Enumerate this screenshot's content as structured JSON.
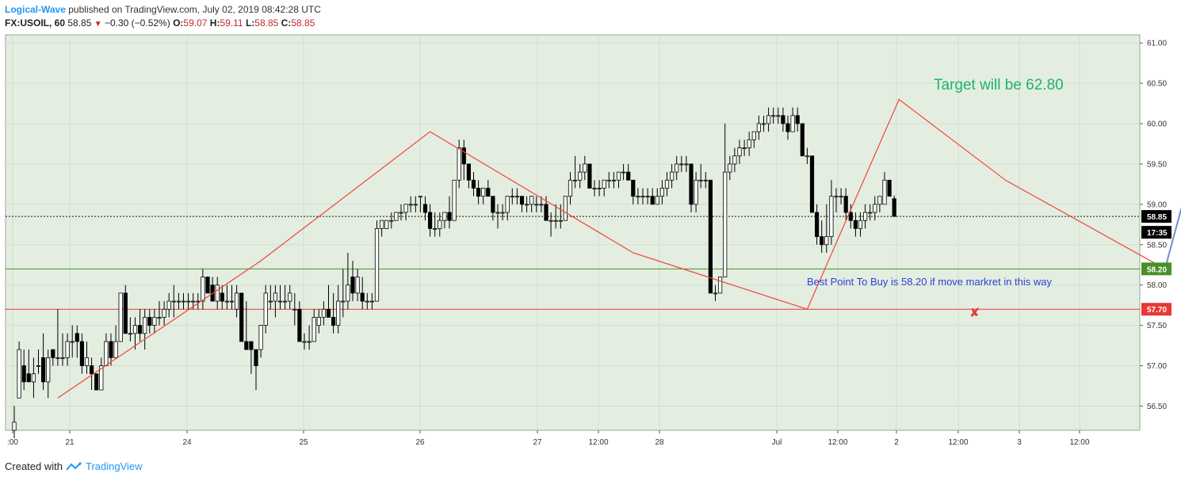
{
  "header": {
    "author": "Logical-Wave",
    "published": "published on TradingView.com, July 02, 2019 08:42:28 UTC",
    "symbol": "FX:USOIL, 60",
    "last": "58.85",
    "change": "−0.30 (−0.52%)",
    "o_label": "O:",
    "o": "59.07",
    "h_label": "H:",
    "h": "59.11",
    "l_label": "L:",
    "l": "58.85",
    "c_label": "C:",
    "c": "58.85"
  },
  "footer": {
    "created_with": "Created with",
    "brand": "TradingView"
  },
  "colors": {
    "plot_bg": "#e3eee1",
    "up": "#ffffff",
    "down": "#000000",
    "pattern_line": "#f44336",
    "target_arrow": "#6d8fcf",
    "target_text": "#21b36b",
    "buy_text": "#2f3fd6",
    "support": "#4a8f2a",
    "stop": "#e53935",
    "grid": "#d2ddd0"
  },
  "chart_data": {
    "type": "candlestick",
    "symbol": "FX:USOIL",
    "interval": "60",
    "ylim": [
      56.2,
      61.1
    ],
    "yticks": [
      "61.00",
      "60.50",
      "60.00",
      "59.50",
      "59.00",
      "58.50",
      "58.00",
      "57.50",
      "57.00",
      "56.50"
    ],
    "xticks": [
      ":00",
      "21",
      "24",
      "25",
      "26",
      "27",
      "12:00",
      "28",
      "Jul",
      "12:00",
      "2",
      "12:00",
      "3",
      "12:00"
    ],
    "price_labels": [
      {
        "text": "58.85",
        "value": 58.85,
        "style": "last"
      },
      {
        "text": "17:35",
        "value": 58.72,
        "style": "timer"
      },
      {
        "text": "58.20",
        "value": 58.2,
        "style": "support"
      },
      {
        "text": "57.70",
        "value": 57.7,
        "style": "stop"
      }
    ],
    "horizontal_lines": [
      {
        "value": 58.85,
        "style": "dotted"
      },
      {
        "value": 58.2,
        "style": "support"
      },
      {
        "value": 57.7,
        "style": "stop"
      }
    ],
    "candles": [
      {
        "o": 56.2,
        "h": 56.5,
        "l": 56.1,
        "c": 56.3
      },
      {
        "o": 56.6,
        "h": 57.3,
        "l": 56.6,
        "c": 57.2
      },
      {
        "o": 57.0,
        "h": 57.2,
        "l": 56.7,
        "c": 56.8
      },
      {
        "o": 56.9,
        "h": 57.2,
        "l": 56.8,
        "c": 56.8
      },
      {
        "o": 56.8,
        "h": 57.1,
        "l": 56.6,
        "c": 56.9
      },
      {
        "o": 57.0,
        "h": 57.2,
        "l": 56.9,
        "c": 57.0
      },
      {
        "o": 57.1,
        "h": 57.4,
        "l": 56.7,
        "c": 56.8
      },
      {
        "o": 56.8,
        "h": 57.2,
        "l": 56.6,
        "c": 57.1
      },
      {
        "o": 57.2,
        "h": 57.2,
        "l": 57.0,
        "c": 57.1
      },
      {
        "o": 57.1,
        "h": 57.7,
        "l": 57.0,
        "c": 57.1
      },
      {
        "o": 57.1,
        "h": 57.4,
        "l": 57.0,
        "c": 57.1
      },
      {
        "o": 57.1,
        "h": 57.4,
        "l": 57.0,
        "c": 57.3
      },
      {
        "o": 57.3,
        "h": 57.5,
        "l": 57.1,
        "c": 57.3
      },
      {
        "o": 57.4,
        "h": 57.5,
        "l": 57.1,
        "c": 57.3
      },
      {
        "o": 57.3,
        "h": 57.4,
        "l": 56.9,
        "c": 57.0
      },
      {
        "o": 57.0,
        "h": 57.3,
        "l": 56.9,
        "c": 57.1
      },
      {
        "o": 57.0,
        "h": 57.1,
        "l": 56.7,
        "c": 56.9
      },
      {
        "o": 56.9,
        "h": 56.9,
        "l": 56.7,
        "c": 56.7
      },
      {
        "o": 56.7,
        "h": 57.1,
        "l": 56.7,
        "c": 57.0
      },
      {
        "o": 57.0,
        "h": 57.4,
        "l": 57.0,
        "c": 57.3
      },
      {
        "o": 57.3,
        "h": 57.4,
        "l": 57.0,
        "c": 57.1
      },
      {
        "o": 57.1,
        "h": 57.5,
        "l": 57.1,
        "c": 57.3
      },
      {
        "o": 57.3,
        "h": 57.9,
        "l": 57.3,
        "c": 57.9
      },
      {
        "o": 57.9,
        "h": 58.0,
        "l": 57.4,
        "c": 57.4
      },
      {
        "o": 57.4,
        "h": 57.6,
        "l": 57.3,
        "c": 57.4
      },
      {
        "o": 57.4,
        "h": 57.6,
        "l": 57.2,
        "c": 57.5
      },
      {
        "o": 57.5,
        "h": 57.7,
        "l": 57.3,
        "c": 57.4
      },
      {
        "o": 57.4,
        "h": 57.7,
        "l": 57.2,
        "c": 57.6
      },
      {
        "o": 57.6,
        "h": 57.7,
        "l": 57.4,
        "c": 57.5
      },
      {
        "o": 57.5,
        "h": 57.7,
        "l": 57.4,
        "c": 57.6
      },
      {
        "o": 57.6,
        "h": 57.8,
        "l": 57.5,
        "c": 57.6
      },
      {
        "o": 57.6,
        "h": 57.8,
        "l": 57.5,
        "c": 57.7
      },
      {
        "o": 57.7,
        "h": 57.9,
        "l": 57.6,
        "c": 57.8
      },
      {
        "o": 57.8,
        "h": 58.0,
        "l": 57.6,
        "c": 57.8
      },
      {
        "o": 57.8,
        "h": 57.9,
        "l": 57.7,
        "c": 57.8
      },
      {
        "o": 57.8,
        "h": 57.9,
        "l": 57.7,
        "c": 57.8
      },
      {
        "o": 57.8,
        "h": 57.9,
        "l": 57.7,
        "c": 57.8
      },
      {
        "o": 57.8,
        "h": 57.9,
        "l": 57.7,
        "c": 57.8
      },
      {
        "o": 57.8,
        "h": 57.9,
        "l": 57.7,
        "c": 57.8
      },
      {
        "o": 57.8,
        "h": 58.2,
        "l": 57.7,
        "c": 58.1
      },
      {
        "o": 58.1,
        "h": 58.1,
        "l": 57.9,
        "c": 57.9
      },
      {
        "o": 58.0,
        "h": 58.1,
        "l": 57.8,
        "c": 57.8
      },
      {
        "o": 57.8,
        "h": 58.1,
        "l": 57.7,
        "c": 58.0
      },
      {
        "o": 57.9,
        "h": 58.0,
        "l": 57.7,
        "c": 57.8
      },
      {
        "o": 57.8,
        "h": 58.0,
        "l": 57.7,
        "c": 57.8
      },
      {
        "o": 57.8,
        "h": 58.0,
        "l": 57.7,
        "c": 57.8
      },
      {
        "o": 57.7,
        "h": 58.0,
        "l": 57.6,
        "c": 57.9
      },
      {
        "o": 57.9,
        "h": 57.9,
        "l": 57.3,
        "c": 57.3
      },
      {
        "o": 57.3,
        "h": 57.8,
        "l": 57.2,
        "c": 57.2
      },
      {
        "o": 57.3,
        "h": 57.3,
        "l": 56.9,
        "c": 57.2
      },
      {
        "o": 57.2,
        "h": 57.2,
        "l": 56.7,
        "c": 57.0
      },
      {
        "o": 57.2,
        "h": 57.5,
        "l": 57.1,
        "c": 57.5
      },
      {
        "o": 57.5,
        "h": 58.0,
        "l": 57.4,
        "c": 57.9
      },
      {
        "o": 57.8,
        "h": 58.0,
        "l": 57.7,
        "c": 57.8
      },
      {
        "o": 57.8,
        "h": 58.0,
        "l": 57.6,
        "c": 57.9
      },
      {
        "o": 57.8,
        "h": 58.0,
        "l": 57.7,
        "c": 57.8
      },
      {
        "o": 57.8,
        "h": 58.0,
        "l": 57.7,
        "c": 57.8
      },
      {
        "o": 57.8,
        "h": 58.0,
        "l": 57.7,
        "c": 57.9
      },
      {
        "o": 57.7,
        "h": 57.9,
        "l": 57.5,
        "c": 57.7
      },
      {
        "o": 57.7,
        "h": 57.8,
        "l": 57.3,
        "c": 57.3
      },
      {
        "o": 57.3,
        "h": 57.4,
        "l": 57.2,
        "c": 57.3
      },
      {
        "o": 57.3,
        "h": 57.5,
        "l": 57.2,
        "c": 57.3
      },
      {
        "o": 57.3,
        "h": 57.7,
        "l": 57.3,
        "c": 57.6
      },
      {
        "o": 57.5,
        "h": 57.7,
        "l": 57.4,
        "c": 57.6
      },
      {
        "o": 57.6,
        "h": 57.8,
        "l": 57.5,
        "c": 57.7
      },
      {
        "o": 57.7,
        "h": 58.0,
        "l": 57.6,
        "c": 57.6
      },
      {
        "o": 57.6,
        "h": 57.9,
        "l": 57.4,
        "c": 57.5
      },
      {
        "o": 57.5,
        "h": 58.0,
        "l": 57.4,
        "c": 57.8
      },
      {
        "o": 57.8,
        "h": 58.2,
        "l": 57.6,
        "c": 57.8
      },
      {
        "o": 57.8,
        "h": 58.4,
        "l": 57.7,
        "c": 58.0
      },
      {
        "o": 58.1,
        "h": 58.3,
        "l": 57.8,
        "c": 57.9
      },
      {
        "o": 57.9,
        "h": 58.2,
        "l": 57.8,
        "c": 58.1
      },
      {
        "o": 57.9,
        "h": 58.1,
        "l": 57.7,
        "c": 57.8
      },
      {
        "o": 57.8,
        "h": 57.9,
        "l": 57.7,
        "c": 57.8
      },
      {
        "o": 57.8,
        "h": 57.9,
        "l": 57.7,
        "c": 57.8
      },
      {
        "o": 57.8,
        "h": 58.8,
        "l": 57.8,
        "c": 58.7
      },
      {
        "o": 58.7,
        "h": 58.8,
        "l": 58.6,
        "c": 58.8
      },
      {
        "o": 58.7,
        "h": 58.8,
        "l": 58.7,
        "c": 58.8
      },
      {
        "o": 58.8,
        "h": 58.9,
        "l": 58.7,
        "c": 58.8
      },
      {
        "o": 58.8,
        "h": 58.9,
        "l": 58.8,
        "c": 58.9
      },
      {
        "o": 58.9,
        "h": 59.0,
        "l": 58.8,
        "c": 58.9
      },
      {
        "o": 58.9,
        "h": 59.0,
        "l": 58.8,
        "c": 59.0
      },
      {
        "o": 59.0,
        "h": 59.1,
        "l": 58.9,
        "c": 59.0
      },
      {
        "o": 59.0,
        "h": 59.1,
        "l": 58.9,
        "c": 59.0
      },
      {
        "o": 59.1,
        "h": 59.1,
        "l": 58.9,
        "c": 59.1
      },
      {
        "o": 59.0,
        "h": 59.1,
        "l": 58.8,
        "c": 58.9
      },
      {
        "o": 58.9,
        "h": 59.0,
        "l": 58.6,
        "c": 58.7
      },
      {
        "o": 58.7,
        "h": 58.9,
        "l": 58.6,
        "c": 58.7
      },
      {
        "o": 58.7,
        "h": 58.9,
        "l": 58.6,
        "c": 58.8
      },
      {
        "o": 58.8,
        "h": 58.9,
        "l": 58.7,
        "c": 58.9
      },
      {
        "o": 58.9,
        "h": 59.1,
        "l": 58.7,
        "c": 58.8
      },
      {
        "o": 58.8,
        "h": 59.3,
        "l": 58.8,
        "c": 59.3
      },
      {
        "o": 59.3,
        "h": 59.8,
        "l": 59.2,
        "c": 59.7
      },
      {
        "o": 59.7,
        "h": 59.8,
        "l": 59.3,
        "c": 59.5
      },
      {
        "o": 59.5,
        "h": 59.5,
        "l": 59.2,
        "c": 59.3
      },
      {
        "o": 59.3,
        "h": 59.4,
        "l": 59.1,
        "c": 59.2
      },
      {
        "o": 59.2,
        "h": 59.3,
        "l": 59.0,
        "c": 59.1
      },
      {
        "o": 59.1,
        "h": 59.2,
        "l": 59.0,
        "c": 59.2
      },
      {
        "o": 59.2,
        "h": 59.3,
        "l": 59.1,
        "c": 59.1
      },
      {
        "o": 59.1,
        "h": 59.1,
        "l": 58.8,
        "c": 58.9
      },
      {
        "o": 58.9,
        "h": 59.0,
        "l": 58.7,
        "c": 58.9
      },
      {
        "o": 58.9,
        "h": 59.0,
        "l": 58.8,
        "c": 58.9
      },
      {
        "o": 58.9,
        "h": 59.1,
        "l": 58.8,
        "c": 59.1
      },
      {
        "o": 59.1,
        "h": 59.2,
        "l": 59.0,
        "c": 59.1
      },
      {
        "o": 59.1,
        "h": 59.2,
        "l": 59.0,
        "c": 59.1
      },
      {
        "o": 59.1,
        "h": 59.1,
        "l": 58.9,
        "c": 59.0
      },
      {
        "o": 59.0,
        "h": 59.1,
        "l": 58.9,
        "c": 59.0
      },
      {
        "o": 59.0,
        "h": 59.1,
        "l": 58.9,
        "c": 59.1
      },
      {
        "o": 59.0,
        "h": 59.1,
        "l": 58.9,
        "c": 59.0
      },
      {
        "o": 59.0,
        "h": 59.1,
        "l": 58.9,
        "c": 59.0
      },
      {
        "o": 59.0,
        "h": 59.1,
        "l": 58.8,
        "c": 58.8
      },
      {
        "o": 58.8,
        "h": 58.9,
        "l": 58.6,
        "c": 58.8
      },
      {
        "o": 58.8,
        "h": 59.0,
        "l": 58.7,
        "c": 58.8
      },
      {
        "o": 58.8,
        "h": 59.0,
        "l": 58.7,
        "c": 58.8
      },
      {
        "o": 58.8,
        "h": 59.1,
        "l": 58.8,
        "c": 59.1
      },
      {
        "o": 59.1,
        "h": 59.4,
        "l": 59.0,
        "c": 59.3
      },
      {
        "o": 59.3,
        "h": 59.6,
        "l": 59.2,
        "c": 59.3
      },
      {
        "o": 59.3,
        "h": 59.5,
        "l": 59.2,
        "c": 59.4
      },
      {
        "o": 59.4,
        "h": 59.6,
        "l": 59.3,
        "c": 59.5
      },
      {
        "o": 59.5,
        "h": 59.5,
        "l": 59.2,
        "c": 59.2
      },
      {
        "o": 59.2,
        "h": 59.3,
        "l": 59.1,
        "c": 59.2
      },
      {
        "o": 59.2,
        "h": 59.3,
        "l": 59.1,
        "c": 59.2
      },
      {
        "o": 59.2,
        "h": 59.3,
        "l": 59.1,
        "c": 59.3
      },
      {
        "o": 59.3,
        "h": 59.4,
        "l": 59.2,
        "c": 59.3
      },
      {
        "o": 59.3,
        "h": 59.4,
        "l": 59.2,
        "c": 59.3
      },
      {
        "o": 59.3,
        "h": 59.4,
        "l": 59.2,
        "c": 59.4
      },
      {
        "o": 59.4,
        "h": 59.5,
        "l": 59.3,
        "c": 59.4
      },
      {
        "o": 59.4,
        "h": 59.5,
        "l": 59.3,
        "c": 59.3
      },
      {
        "o": 59.3,
        "h": 59.3,
        "l": 59.0,
        "c": 59.1
      },
      {
        "o": 59.1,
        "h": 59.2,
        "l": 59.0,
        "c": 59.1
      },
      {
        "o": 59.1,
        "h": 59.2,
        "l": 59.0,
        "c": 59.1
      },
      {
        "o": 59.1,
        "h": 59.2,
        "l": 59.0,
        "c": 59.1
      },
      {
        "o": 59.1,
        "h": 59.2,
        "l": 59.0,
        "c": 59.0
      },
      {
        "o": 59.0,
        "h": 59.2,
        "l": 59.0,
        "c": 59.1
      },
      {
        "o": 59.1,
        "h": 59.3,
        "l": 59.0,
        "c": 59.2
      },
      {
        "o": 59.2,
        "h": 59.4,
        "l": 59.1,
        "c": 59.3
      },
      {
        "o": 59.3,
        "h": 59.5,
        "l": 59.2,
        "c": 59.4
      },
      {
        "o": 59.4,
        "h": 59.6,
        "l": 59.3,
        "c": 59.5
      },
      {
        "o": 59.5,
        "h": 59.6,
        "l": 59.4,
        "c": 59.5
      },
      {
        "o": 59.5,
        "h": 59.6,
        "l": 59.4,
        "c": 59.5
      },
      {
        "o": 59.5,
        "h": 59.5,
        "l": 58.9,
        "c": 59.0
      },
      {
        "o": 59.0,
        "h": 59.4,
        "l": 58.9,
        "c": 59.3
      },
      {
        "o": 59.3,
        "h": 59.5,
        "l": 59.2,
        "c": 59.3
      },
      {
        "o": 59.3,
        "h": 59.4,
        "l": 59.2,
        "c": 59.3
      },
      {
        "o": 59.3,
        "h": 59.3,
        "l": 57.9,
        "c": 57.9
      },
      {
        "o": 57.9,
        "h": 58.0,
        "l": 57.8,
        "c": 57.9
      },
      {
        "o": 57.9,
        "h": 58.1,
        "l": 57.9,
        "c": 58.1
      },
      {
        "o": 58.1,
        "h": 60.0,
        "l": 58.1,
        "c": 59.4
      },
      {
        "o": 59.4,
        "h": 59.6,
        "l": 59.3,
        "c": 59.5
      },
      {
        "o": 59.5,
        "h": 59.7,
        "l": 59.4,
        "c": 59.6
      },
      {
        "o": 59.6,
        "h": 59.8,
        "l": 59.5,
        "c": 59.7
      },
      {
        "o": 59.7,
        "h": 59.8,
        "l": 59.6,
        "c": 59.7
      },
      {
        "o": 59.7,
        "h": 59.9,
        "l": 59.6,
        "c": 59.8
      },
      {
        "o": 59.8,
        "h": 59.9,
        "l": 59.7,
        "c": 59.9
      },
      {
        "o": 59.9,
        "h": 60.1,
        "l": 59.8,
        "c": 60.0
      },
      {
        "o": 60.0,
        "h": 60.1,
        "l": 59.9,
        "c": 60.0
      },
      {
        "o": 60.0,
        "h": 60.2,
        "l": 59.9,
        "c": 60.1
      },
      {
        "o": 60.1,
        "h": 60.2,
        "l": 60.0,
        "c": 60.1
      },
      {
        "o": 60.1,
        "h": 60.2,
        "l": 60.0,
        "c": 60.1
      },
      {
        "o": 60.1,
        "h": 60.2,
        "l": 59.9,
        "c": 60.0
      },
      {
        "o": 60.0,
        "h": 60.1,
        "l": 59.8,
        "c": 59.9
      },
      {
        "o": 59.9,
        "h": 60.2,
        "l": 59.9,
        "c": 60.1
      },
      {
        "o": 60.1,
        "h": 60.2,
        "l": 59.9,
        "c": 60.0
      },
      {
        "o": 60.0,
        "h": 60.0,
        "l": 59.6,
        "c": 59.6
      },
      {
        "o": 59.6,
        "h": 59.7,
        "l": 59.5,
        "c": 59.6
      },
      {
        "o": 59.6,
        "h": 59.6,
        "l": 58.9,
        "c": 58.9
      },
      {
        "o": 58.9,
        "h": 59.0,
        "l": 58.5,
        "c": 58.6
      },
      {
        "o": 58.6,
        "h": 58.8,
        "l": 58.4,
        "c": 58.5
      },
      {
        "o": 58.5,
        "h": 59.0,
        "l": 58.4,
        "c": 58.6
      },
      {
        "o": 58.6,
        "h": 59.3,
        "l": 58.5,
        "c": 59.1
      },
      {
        "o": 59.1,
        "h": 59.2,
        "l": 58.9,
        "c": 59.1
      },
      {
        "o": 59.1,
        "h": 59.2,
        "l": 59.0,
        "c": 59.1
      },
      {
        "o": 59.1,
        "h": 59.2,
        "l": 58.8,
        "c": 58.9
      },
      {
        "o": 58.9,
        "h": 59.0,
        "l": 58.7,
        "c": 58.8
      },
      {
        "o": 58.8,
        "h": 58.9,
        "l": 58.6,
        "c": 58.7
      },
      {
        "o": 58.7,
        "h": 58.9,
        "l": 58.6,
        "c": 58.8
      },
      {
        "o": 58.8,
        "h": 59.0,
        "l": 58.7,
        "c": 58.9
      },
      {
        "o": 58.9,
        "h": 59.0,
        "l": 58.8,
        "c": 58.9
      },
      {
        "o": 58.9,
        "h": 59.1,
        "l": 58.8,
        "c": 59.0
      },
      {
        "o": 59.0,
        "h": 59.1,
        "l": 58.9,
        "c": 59.1
      },
      {
        "o": 59.0,
        "h": 59.4,
        "l": 59.0,
        "c": 59.3
      },
      {
        "o": 59.3,
        "h": 59.3,
        "l": 59.1,
        "c": 59.1
      },
      {
        "o": 59.07,
        "h": 59.11,
        "l": 58.85,
        "c": 58.85
      }
    ],
    "pattern_lines": [
      {
        "points": [
          [
            9,
            56.6
          ],
          [
            51,
            58.3
          ],
          [
            86,
            59.9
          ],
          [
            128,
            58.4
          ],
          [
            164,
            57.7
          ],
          [
            183,
            60.3
          ],
          [
            205,
            59.3
          ],
          [
            238,
            58.2
          ]
        ]
      }
    ],
    "forecast_arrow": {
      "from": [
        238,
        58.2
      ],
      "to": [
        248,
        60.3
      ]
    },
    "annotations": [
      {
        "text": "Target will be 62.80"
      },
      {
        "text": "Best Point To Buy is 58.20 if move markret in this way"
      },
      {
        "text": "✘"
      }
    ]
  }
}
